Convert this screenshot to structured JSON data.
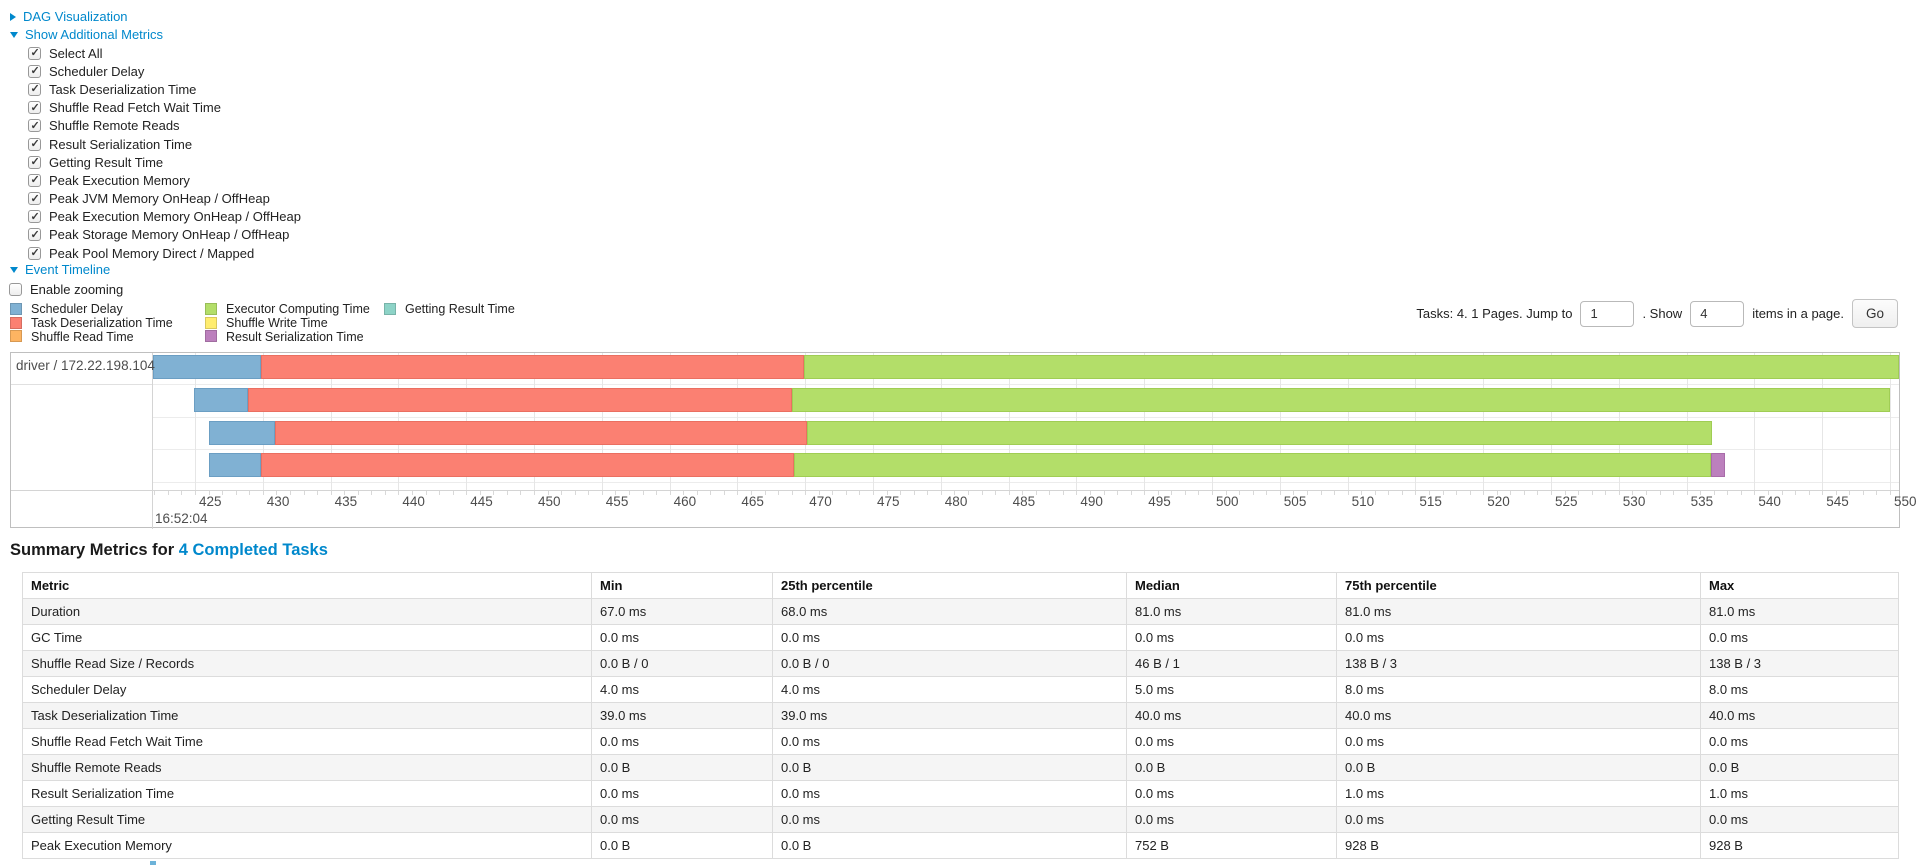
{
  "colors": {
    "link": "#0088cc",
    "scheduler_delay": "#80B1D3",
    "task_deserialization": "#FB8072",
    "shuffle_read": "#FDB462",
    "executor_computing": "#B3DE69",
    "shuffle_write": "#FFED6F",
    "result_serialization": "#BC80BD",
    "getting_result": "#8DD3C7"
  },
  "toggles": {
    "dag_label": "DAG Visualization",
    "metrics_label": "Show Additional Metrics",
    "event_timeline_label": "Event Timeline",
    "enable_zooming_label": "Enable zooming"
  },
  "metrics_panel": {
    "checkboxes": [
      {
        "label": "Select All",
        "checked": true
      },
      {
        "label": "Scheduler Delay",
        "checked": true
      },
      {
        "label": "Task Deserialization Time",
        "checked": true
      },
      {
        "label": "Shuffle Read Fetch Wait Time",
        "checked": true
      },
      {
        "label": "Shuffle Remote Reads",
        "checked": true
      },
      {
        "label": "Result Serialization Time",
        "checked": true
      },
      {
        "label": "Getting Result Time",
        "checked": true
      },
      {
        "label": "Peak Execution Memory",
        "checked": true
      },
      {
        "label": "Peak JVM Memory OnHeap / OffHeap",
        "checked": true
      },
      {
        "label": "Peak Execution Memory OnHeap / OffHeap",
        "checked": true
      },
      {
        "label": "Peak Storage Memory OnHeap / OffHeap",
        "checked": true
      },
      {
        "label": "Peak Pool Memory Direct / Mapped",
        "checked": true
      }
    ]
  },
  "legend": {
    "columns": [
      [
        {
          "label": "Scheduler Delay",
          "color": "#80B1D3"
        },
        {
          "label": "Task Deserialization Time",
          "color": "#FB8072"
        },
        {
          "label": "Shuffle Read Time",
          "color": "#FDB462"
        }
      ],
      [
        {
          "label": "Executor Computing Time",
          "color": "#B3DE69"
        },
        {
          "label": "Shuffle Write Time",
          "color": "#FFED6F"
        },
        {
          "label": "Result Serialization Time",
          "color": "#BC80BD"
        }
      ],
      [
        {
          "label": "Getting Result Time",
          "color": "#8DD3C7"
        }
      ]
    ]
  },
  "pagination": {
    "tasks_text": "Tasks: 4. 1 Pages. Jump to",
    "jump_value": "1",
    "show_text": ". Show",
    "show_value": "4",
    "items_text": "items in a page.",
    "go_label": "Go"
  },
  "timeline": {
    "group_label": "driver / 172.22.198.104",
    "axis": {
      "ticks_seconds": [
        425,
        430,
        435,
        440,
        445,
        450,
        455,
        460,
        465,
        470,
        475,
        480,
        485,
        490,
        495,
        500,
        505,
        510,
        515,
        520,
        525,
        530,
        535,
        540,
        545,
        550
      ],
      "major_label": "16:52:04"
    },
    "tasks": [
      {
        "segments": [
          {
            "type": "scheduler_delay",
            "start": 421.9,
            "end": 429.9
          },
          {
            "type": "task_deserialization",
            "start": 429.9,
            "end": 469.9
          },
          {
            "type": "executor_computing",
            "start": 469.9,
            "end": 550.7
          }
        ]
      },
      {
        "segments": [
          {
            "type": "scheduler_delay",
            "start": 424.9,
            "end": 428.9
          },
          {
            "type": "task_deserialization",
            "start": 428.9,
            "end": 469.0
          },
          {
            "type": "executor_computing",
            "start": 469.0,
            "end": 550.0
          }
        ]
      },
      {
        "segments": [
          {
            "type": "scheduler_delay",
            "start": 426.0,
            "end": 430.9
          },
          {
            "type": "task_deserialization",
            "start": 430.9,
            "end": 470.1
          },
          {
            "type": "executor_computing",
            "start": 470.1,
            "end": 536.9
          }
        ]
      },
      {
        "segments": [
          {
            "type": "scheduler_delay",
            "start": 426.0,
            "end": 429.9
          },
          {
            "type": "task_deserialization",
            "start": 429.9,
            "end": 469.2
          },
          {
            "type": "executor_computing",
            "start": 469.2,
            "end": 536.8
          },
          {
            "type": "result_serialization",
            "start": 536.8,
            "end": 537.8
          }
        ]
      }
    ]
  },
  "summary": {
    "title_prefix": "Summary Metrics for ",
    "title_link": "4 Completed Tasks",
    "table": {
      "headers": [
        "Metric",
        "Min",
        "25th percentile",
        "Median",
        "75th percentile",
        "Max"
      ],
      "rows": [
        [
          "Duration",
          "67.0 ms",
          "68.0 ms",
          "81.0 ms",
          "81.0 ms",
          "81.0 ms"
        ],
        [
          "GC Time",
          "0.0 ms",
          "0.0 ms",
          "0.0 ms",
          "0.0 ms",
          "0.0 ms"
        ],
        [
          "Shuffle Read Size / Records",
          "0.0 B / 0",
          "0.0 B / 0",
          "46 B / 1",
          "138 B / 3",
          "138 B / 3"
        ],
        [
          "Scheduler Delay",
          "4.0 ms",
          "4.0 ms",
          "5.0 ms",
          "8.0 ms",
          "8.0 ms"
        ],
        [
          "Task Deserialization Time",
          "39.0 ms",
          "39.0 ms",
          "40.0 ms",
          "40.0 ms",
          "40.0 ms"
        ],
        [
          "Shuffle Read Fetch Wait Time",
          "0.0 ms",
          "0.0 ms",
          "0.0 ms",
          "0.0 ms",
          "0.0 ms"
        ],
        [
          "Shuffle Remote Reads",
          "0.0 B",
          "0.0 B",
          "0.0 B",
          "0.0 B",
          "0.0 B"
        ],
        [
          "Result Serialization Time",
          "0.0 ms",
          "0.0 ms",
          "0.0 ms",
          "1.0 ms",
          "1.0 ms"
        ],
        [
          "Getting Result Time",
          "0.0 ms",
          "0.0 ms",
          "0.0 ms",
          "0.0 ms",
          "0.0 ms"
        ],
        [
          "Peak Execution Memory",
          "0.0 B",
          "0.0 B",
          "752 B",
          "928 B",
          "928 B"
        ]
      ]
    }
  }
}
